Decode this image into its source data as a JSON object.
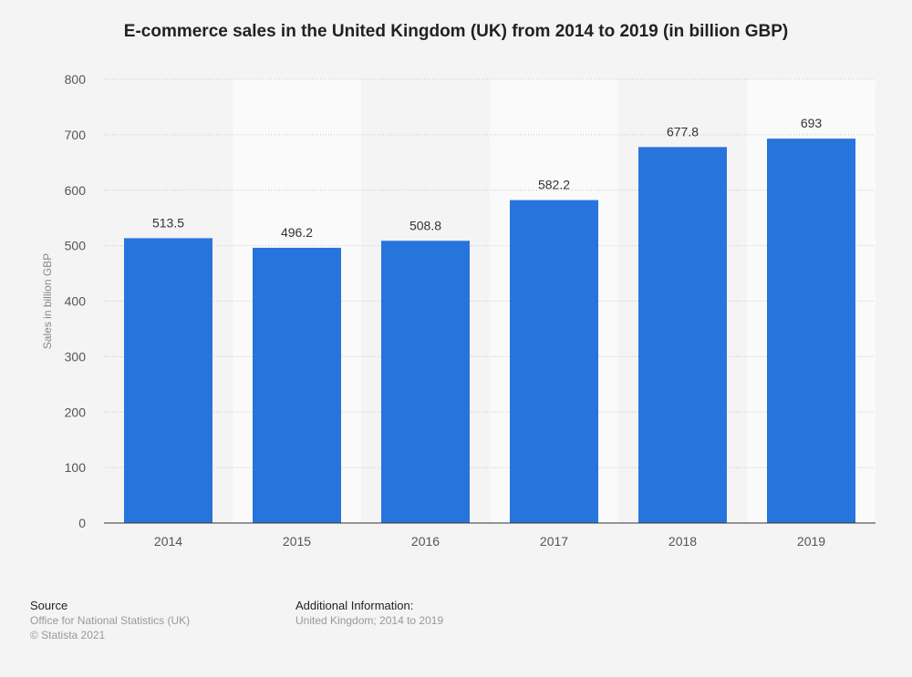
{
  "chart_data": {
    "type": "bar",
    "title": "E-commerce sales in the United Kingdom (UK) from 2014 to 2019 (in billion GBP)",
    "xlabel": "",
    "ylabel": "Sales in billion GBP",
    "categories": [
      "2014",
      "2015",
      "2016",
      "2017",
      "2018",
      "2019"
    ],
    "values": [
      513.5,
      496.2,
      508.8,
      582.2,
      677.8,
      693
    ],
    "value_labels": [
      "513.5",
      "496.2",
      "508.8",
      "582.2",
      "677.8",
      "693"
    ],
    "ylim": [
      0,
      800
    ],
    "yticks": [
      0,
      100,
      200,
      300,
      400,
      500,
      600,
      700,
      800
    ],
    "grid": true,
    "bar_color": "#2775dc"
  },
  "footer": {
    "source_heading": "Source",
    "source_lines": [
      "Office for National Statistics (UK)",
      "© Statista 2021"
    ],
    "info_heading": "Additional Information:",
    "info_text": "United Kingdom; 2014 to 2019"
  }
}
